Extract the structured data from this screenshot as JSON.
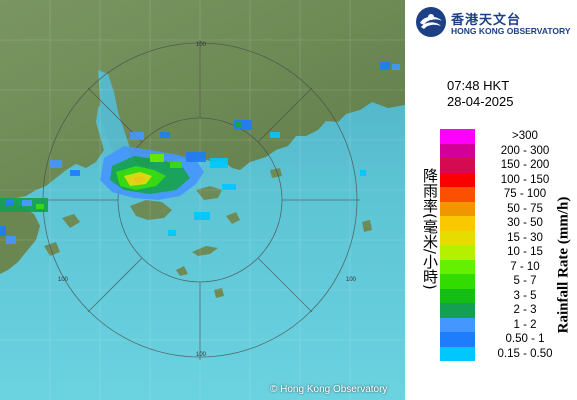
{
  "organization": {
    "name_cn": "香港天文台",
    "name_en": "HONG KONG OBSERVATORY"
  },
  "map": {
    "type": "radar rainfall image",
    "range_labels": [
      "100",
      "100",
      "100",
      "100"
    ],
    "copyright": "© Hong Kong Observatory",
    "colors": {
      "sea": "#5bc1cf",
      "land": "#6d8a55"
    }
  },
  "timestamp": {
    "time": "07:48 HKT",
    "date": "28-04-2025"
  },
  "legend": {
    "title_cn": "降雨率(毫米/小時)",
    "title_en": "Rainfall Rate (mm/h)",
    "entries": [
      {
        "label": ">300",
        "color": "#ff00ff"
      },
      {
        "label": "200 - 300",
        "color": "#d20096"
      },
      {
        "label": "150 - 200",
        "color": "#d60a50"
      },
      {
        "label": "100 - 150",
        "color": "#fa0000"
      },
      {
        "label": "75 - 100",
        "color": "#fa5000"
      },
      {
        "label": "50 - 75",
        "color": "#f09600"
      },
      {
        "label": "30 - 50",
        "color": "#fac800"
      },
      {
        "label": "15 - 30",
        "color": "#e6dc00"
      },
      {
        "label": "10 - 15",
        "color": "#b4f000"
      },
      {
        "label": "7 - 10",
        "color": "#64f000"
      },
      {
        "label": "5 - 7",
        "color": "#32dc00"
      },
      {
        "label": "3 - 5",
        "color": "#14be14"
      },
      {
        "label": "2 - 3",
        "color": "#14a050"
      },
      {
        "label": "1 - 2",
        "color": "#4696ff"
      },
      {
        "label": "0.50 - 1",
        "color": "#1e7dfa"
      },
      {
        "label": "0.15 - 0.50",
        "color": "#00c8ff"
      }
    ]
  }
}
